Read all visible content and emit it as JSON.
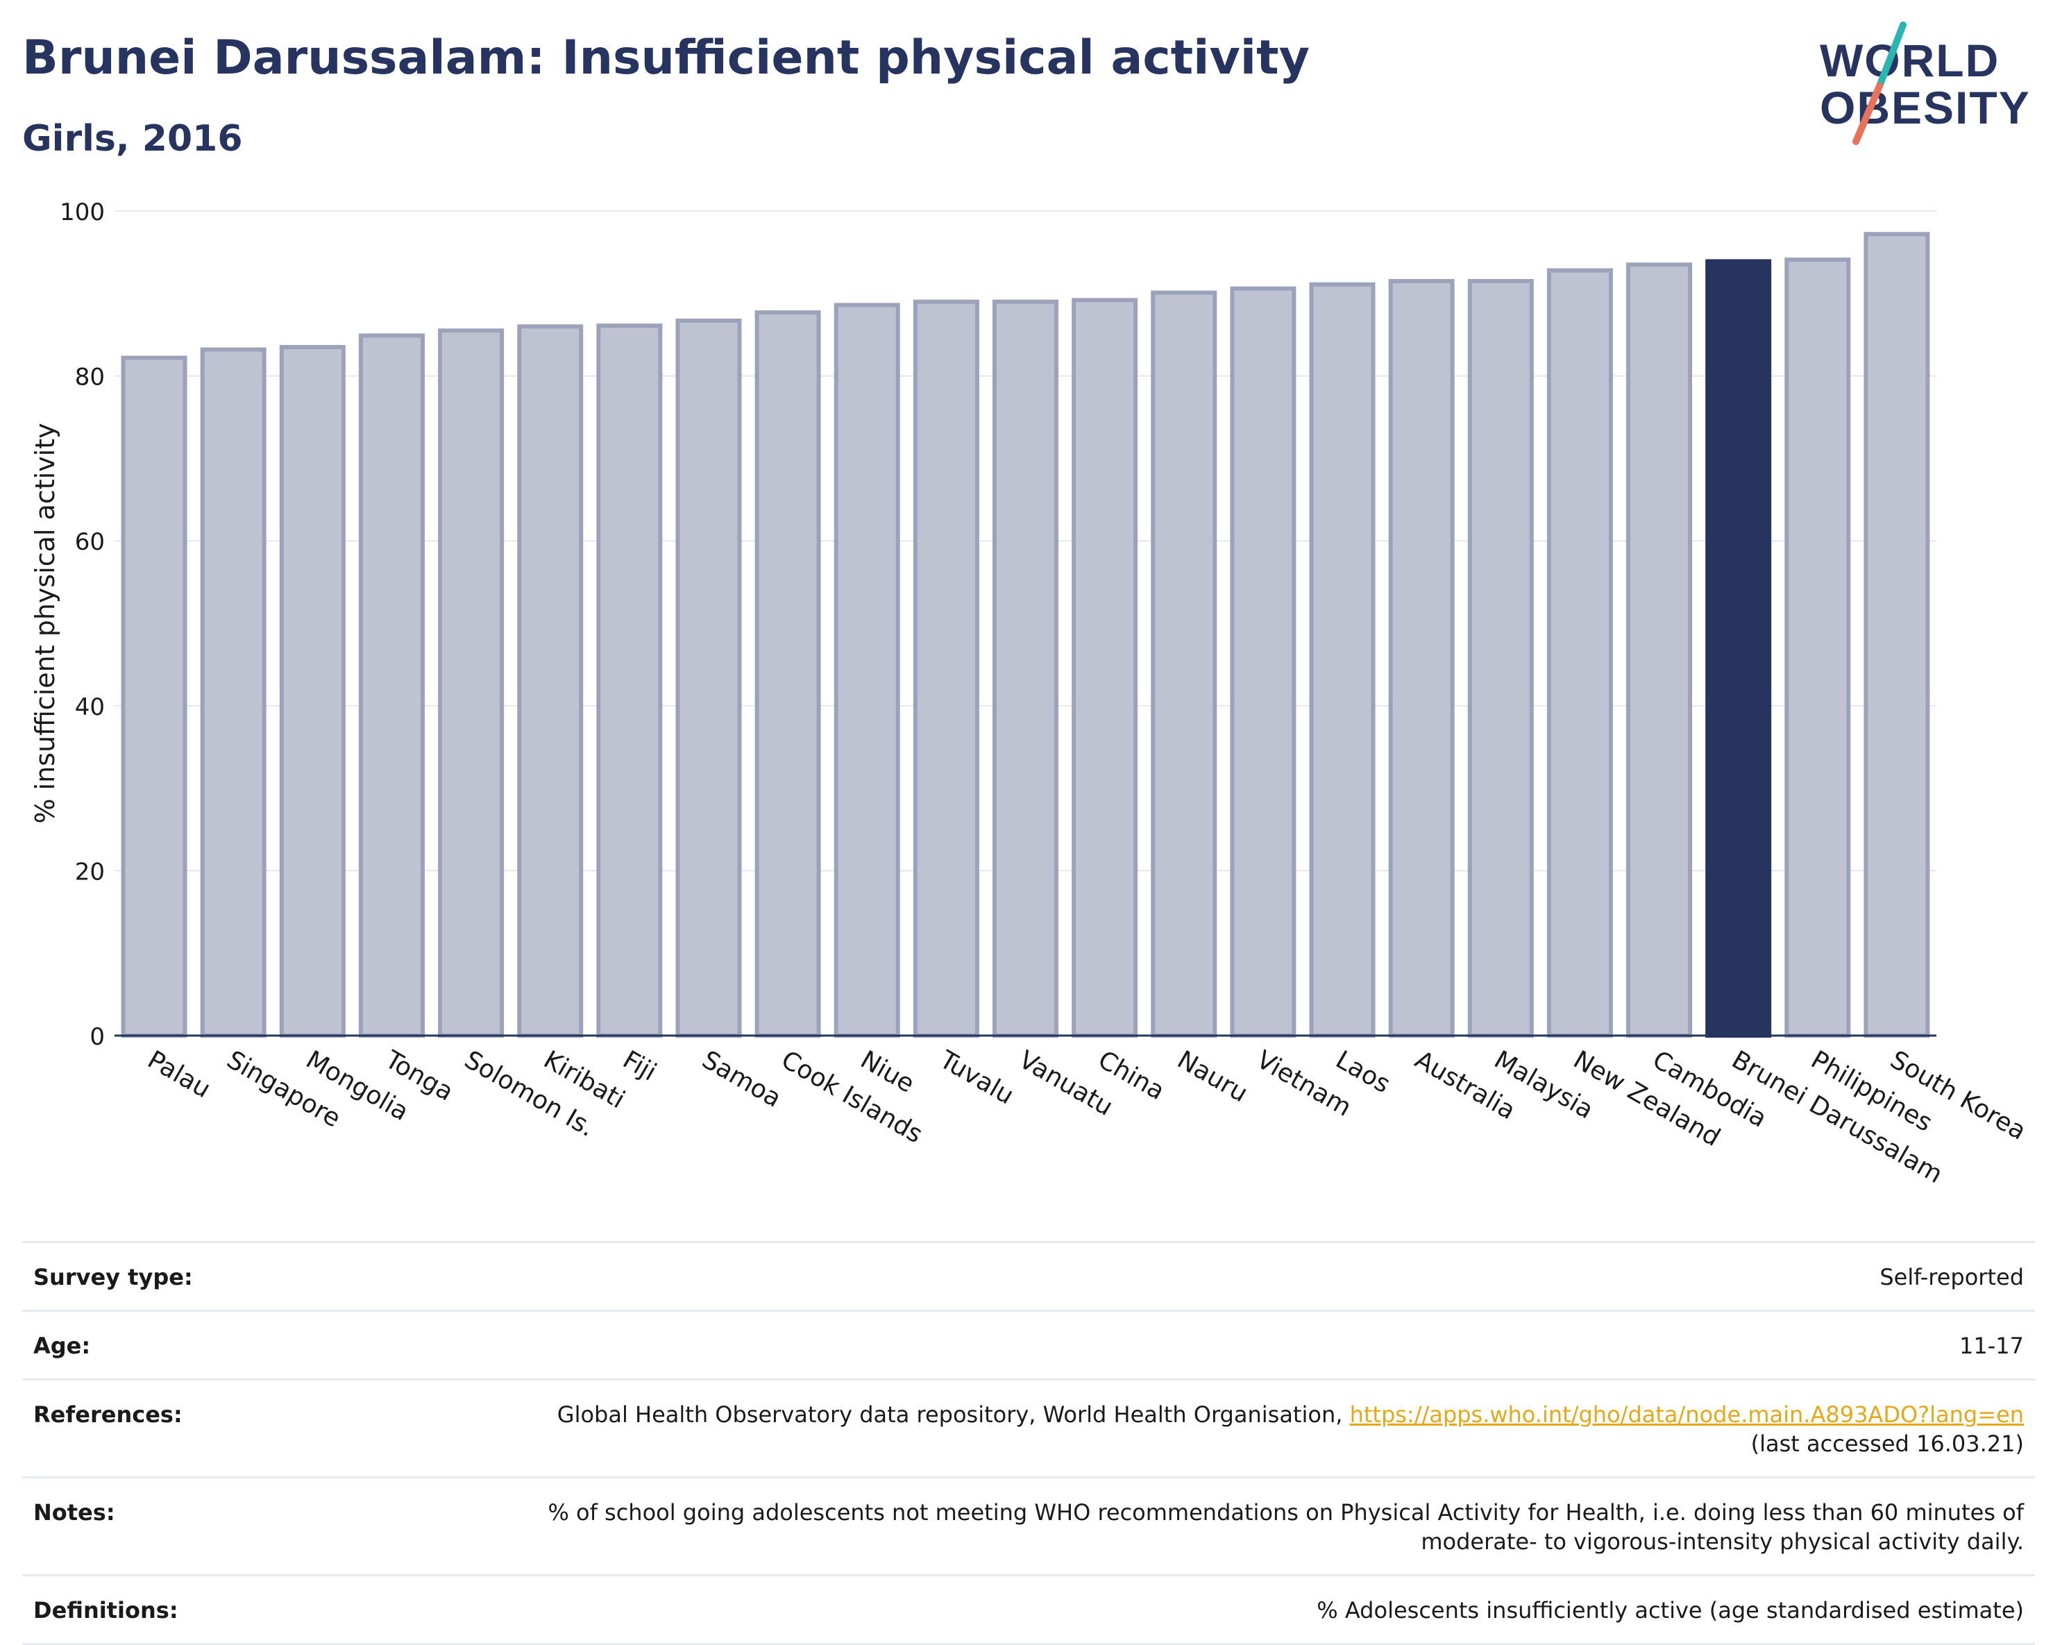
{
  "title": "Brunei Darussalam: Insufficient physical activity",
  "subtitle": "Girls, 2016",
  "logo": {
    "line1": "WORLD",
    "line2": "OBESITY"
  },
  "colors": {
    "highlight": "#283460",
    "bar_fill": "#bfc2d1",
    "bar_stroke": "#9ca2ba",
    "link": "#e6a817",
    "logo_teal": "#2bb5b0",
    "logo_coral": "#e8735a"
  },
  "chart_data": {
    "type": "bar",
    "title": "Brunei Darussalam: Insufficient physical activity",
    "subtitle": "Girls, 2016",
    "ylabel": "% insufficient physical activity",
    "xlabel": "",
    "ylim": [
      0,
      100
    ],
    "yticks": [
      0,
      20,
      40,
      60,
      80,
      100
    ],
    "grid": true,
    "highlight": "Brunei Darussalam",
    "categories": [
      "Palau",
      "Singapore",
      "Mongolia",
      "Tonga",
      "Solomon Is.",
      "Kiribati",
      "Fiji",
      "Samoa",
      "Cook Islands",
      "Niue",
      "Tuvalu",
      "Vanuatu",
      "China",
      "Nauru",
      "Vietnam",
      "Laos",
      "Australia",
      "Malaysia",
      "New Zealand",
      "Cambodia",
      "Brunei Darussalam",
      "Philippines",
      "South Korea"
    ],
    "values": [
      82.2,
      83.2,
      83.5,
      84.9,
      85.5,
      86.0,
      86.1,
      86.7,
      87.7,
      88.6,
      89.0,
      89.0,
      89.2,
      90.1,
      90.6,
      91.1,
      91.5,
      91.5,
      92.8,
      93.5,
      93.9,
      94.1,
      97.2
    ]
  },
  "info": {
    "survey_type": {
      "label": "Survey type:",
      "value": "Self-reported"
    },
    "age": {
      "label": "Age:",
      "value": "11-17"
    },
    "references": {
      "label": "References:",
      "text": "Global Health Observatory data repository, World Health Organisation, ",
      "link": "https://apps.who.int/gho/data/node.main.A893ADO?lang=en",
      "accessed": "(last accessed 16.03.21)"
    },
    "notes": {
      "label": "Notes:",
      "line1": "% of school going adolescents not meeting WHO recommendations on Physical Activity for Health, i.e. doing less than 60 minutes of",
      "line2": "moderate- to vigorous-intensity physical activity daily."
    },
    "definitions": {
      "label": "Definitions:",
      "value": "% Adolescents insufficiently active (age standardised estimate)"
    }
  }
}
